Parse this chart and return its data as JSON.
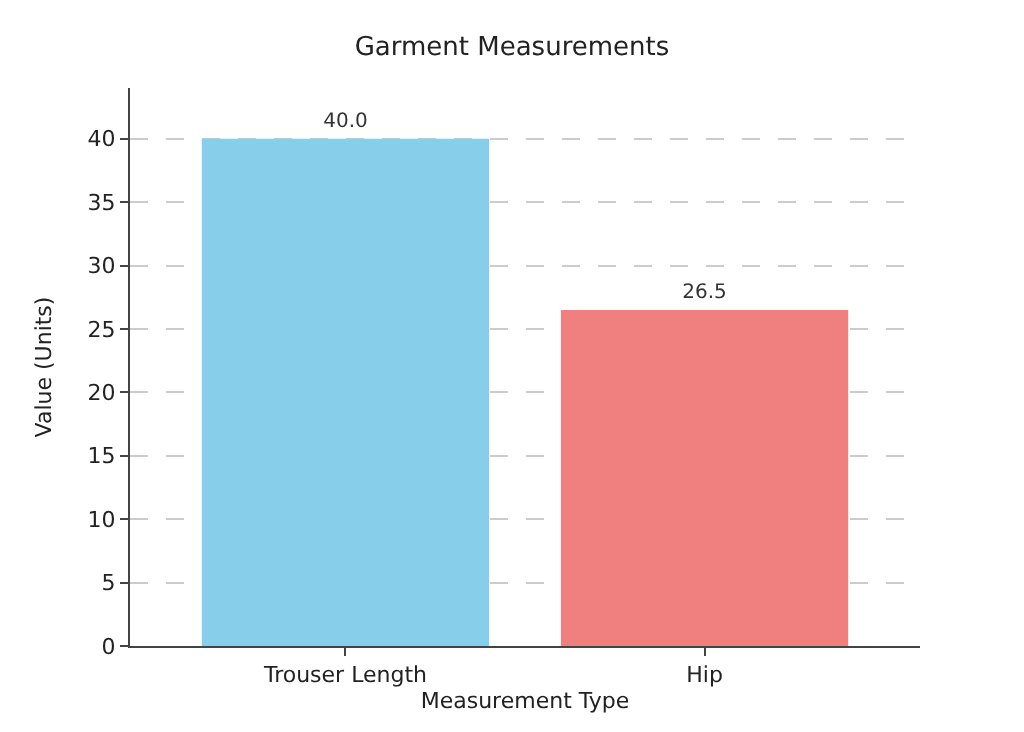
{
  "chart_data": {
    "type": "bar",
    "title": "Garment Measurements",
    "xlabel": "Measurement Type",
    "ylabel": "Value (Units)",
    "categories": [
      "Trouser Length",
      "Hip"
    ],
    "values": [
      40.0,
      26.5
    ],
    "value_labels": [
      "40.0",
      "26.5"
    ],
    "colors": [
      "#87ceeb",
      "#f08080"
    ],
    "ylim": [
      0,
      44
    ],
    "yticks": [
      0,
      5,
      10,
      15,
      20,
      25,
      30,
      35,
      40
    ],
    "grid": "y"
  }
}
